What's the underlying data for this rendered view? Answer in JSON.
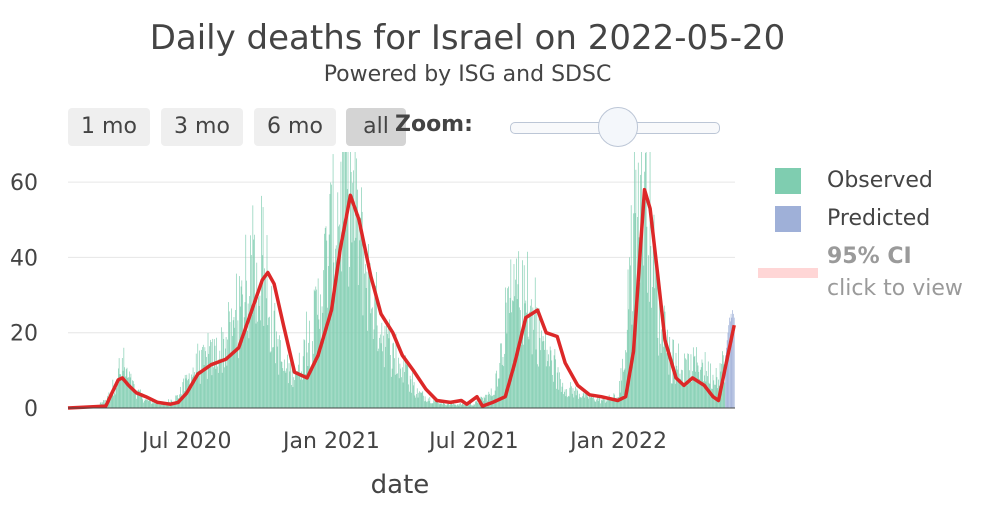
{
  "header": {
    "title": "Daily deaths for Israel on 2022-05-20",
    "subtitle": "Powered by ISG and SDSC"
  },
  "controls": {
    "range_buttons": [
      "1 mo",
      "3 mo",
      "6 mo",
      "all"
    ],
    "active_button": "all",
    "zoom_label": "Zoom:"
  },
  "legend": {
    "observed": "Observed",
    "predicted": "Predicted",
    "ci_title": "95% CI",
    "ci_hint": "click to view"
  },
  "colors": {
    "observed": "#7fcdb0",
    "predicted": "#9fb0d8",
    "trend": "#dc2828",
    "ci": "#ffd6d6"
  },
  "chart_data": {
    "type": "bar",
    "title": "Daily deaths for Israel on 2022-05-20",
    "xlabel": "date",
    "ylabel": "",
    "xlim": [
      "2020-02-01",
      "2022-05-29"
    ],
    "ylim": [
      0,
      68
    ],
    "yticks": [
      0,
      20,
      40,
      60
    ],
    "xticks": [
      {
        "date": "2020-07-01",
        "label": "Jul 2020"
      },
      {
        "date": "2021-01-01",
        "label": "Jan 2021"
      },
      {
        "date": "2021-07-01",
        "label": "Jul 2021"
      },
      {
        "date": "2022-01-01",
        "label": "Jan 2022"
      }
    ],
    "grid": true,
    "legend_position": "right",
    "series": [
      {
        "name": "Observed",
        "type": "bar",
        "x_start": "2020-02-01",
        "x_end": "2022-05-16",
        "profile": [
          [
            "2020-02-01",
            0
          ],
          [
            "2020-03-05",
            0
          ],
          [
            "2020-03-20",
            2
          ],
          [
            "2020-04-05",
            8
          ],
          [
            "2020-04-12",
            10
          ],
          [
            "2020-04-25",
            5
          ],
          [
            "2020-05-10",
            2
          ],
          [
            "2020-06-01",
            1
          ],
          [
            "2020-06-20",
            3
          ],
          [
            "2020-07-10",
            10
          ],
          [
            "2020-08-01",
            13
          ],
          [
            "2020-08-25",
            18
          ],
          [
            "2020-09-20",
            32
          ],
          [
            "2020-10-01",
            38
          ],
          [
            "2020-10-15",
            25
          ],
          [
            "2020-11-01",
            10
          ],
          [
            "2020-11-20",
            10
          ],
          [
            "2020-12-10",
            22
          ],
          [
            "2021-01-01",
            45
          ],
          [
            "2021-01-20",
            60
          ],
          [
            "2021-02-01",
            50
          ],
          [
            "2021-02-20",
            30
          ],
          [
            "2021-03-15",
            15
          ],
          [
            "2021-04-01",
            10
          ],
          [
            "2021-04-20",
            4
          ],
          [
            "2021-05-10",
            2
          ],
          [
            "2021-06-01",
            1
          ],
          [
            "2021-07-01",
            1
          ],
          [
            "2021-07-25",
            4
          ],
          [
            "2021-08-10",
            20
          ],
          [
            "2021-08-25",
            30
          ],
          [
            "2021-09-10",
            25
          ],
          [
            "2021-10-01",
            15
          ],
          [
            "2021-10-20",
            6
          ],
          [
            "2021-11-10",
            4
          ],
          [
            "2021-12-10",
            2
          ],
          [
            "2021-12-31",
            3
          ],
          [
            "2022-01-10",
            15
          ],
          [
            "2022-01-25",
            55
          ],
          [
            "2022-02-05",
            60
          ],
          [
            "2022-02-20",
            25
          ],
          [
            "2022-03-05",
            12
          ],
          [
            "2022-03-25",
            10
          ],
          [
            "2022-04-15",
            12
          ],
          [
            "2022-05-01",
            8
          ],
          [
            "2022-05-16",
            12
          ]
        ]
      },
      {
        "name": "Predicted",
        "type": "bar",
        "x_start": "2022-05-17",
        "x_end": "2022-05-28",
        "values": [
          14,
          16,
          18,
          20,
          22,
          24,
          23,
          25,
          24,
          26,
          25,
          24
        ]
      },
      {
        "name": "trend",
        "type": "line",
        "points": [
          [
            "2020-02-01",
            0
          ],
          [
            "2020-03-20",
            0.5
          ],
          [
            "2020-03-28",
            4
          ],
          [
            "2020-04-05",
            7.5
          ],
          [
            "2020-04-10",
            8
          ],
          [
            "2020-04-18",
            6
          ],
          [
            "2020-04-28",
            4
          ],
          [
            "2020-05-10",
            3
          ],
          [
            "2020-05-25",
            1.5
          ],
          [
            "2020-06-10",
            1
          ],
          [
            "2020-06-20",
            1.5
          ],
          [
            "2020-07-01",
            4
          ],
          [
            "2020-07-15",
            9
          ],
          [
            "2020-08-01",
            11.5
          ],
          [
            "2020-08-20",
            13
          ],
          [
            "2020-09-05",
            16
          ],
          [
            "2020-09-20",
            25
          ],
          [
            "2020-10-05",
            34
          ],
          [
            "2020-10-12",
            36
          ],
          [
            "2020-10-20",
            33
          ],
          [
            "2020-11-01",
            22
          ],
          [
            "2020-11-15",
            9.5
          ],
          [
            "2020-12-01",
            8
          ],
          [
            "2020-12-15",
            14
          ],
          [
            "2021-01-01",
            26
          ],
          [
            "2021-01-12",
            42
          ],
          [
            "2021-01-25",
            56.5
          ],
          [
            "2021-02-05",
            50
          ],
          [
            "2021-02-20",
            35
          ],
          [
            "2021-03-05",
            25
          ],
          [
            "2021-03-20",
            20
          ],
          [
            "2021-04-01",
            14
          ],
          [
            "2021-04-15",
            10
          ],
          [
            "2021-05-01",
            5
          ],
          [
            "2021-05-15",
            2
          ],
          [
            "2021-06-01",
            1.5
          ],
          [
            "2021-06-15",
            2
          ],
          [
            "2021-06-22",
            1
          ],
          [
            "2021-07-05",
            3
          ],
          [
            "2021-07-12",
            0.5
          ],
          [
            "2021-07-25",
            1.5
          ],
          [
            "2021-08-10",
            3
          ],
          [
            "2021-08-22",
            12
          ],
          [
            "2021-09-05",
            24
          ],
          [
            "2021-09-20",
            26
          ],
          [
            "2021-10-01",
            20
          ],
          [
            "2021-10-15",
            19
          ],
          [
            "2021-10-25",
            12
          ],
          [
            "2021-11-10",
            6
          ],
          [
            "2021-11-25",
            3.5
          ],
          [
            "2021-12-10",
            3
          ],
          [
            "2021-12-31",
            2
          ],
          [
            "2022-01-10",
            3
          ],
          [
            "2022-01-20",
            15
          ],
          [
            "2022-01-28",
            40
          ],
          [
            "2022-02-03",
            58
          ],
          [
            "2022-02-10",
            53
          ],
          [
            "2022-02-20",
            35
          ],
          [
            "2022-03-01",
            18
          ],
          [
            "2022-03-15",
            8
          ],
          [
            "2022-03-25",
            6
          ],
          [
            "2022-04-05",
            8
          ],
          [
            "2022-04-20",
            6
          ],
          [
            "2022-05-01",
            3
          ],
          [
            "2022-05-08",
            2
          ],
          [
            "2022-05-18",
            12
          ],
          [
            "2022-05-28",
            22
          ]
        ]
      }
    ]
  }
}
